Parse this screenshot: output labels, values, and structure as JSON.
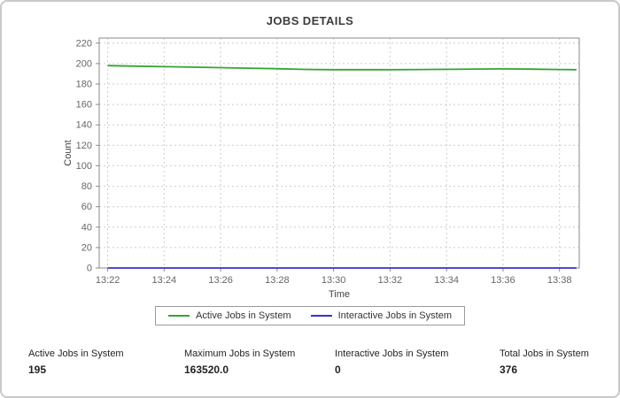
{
  "page_title": "JOBS DETAILS",
  "chart_data": {
    "type": "line",
    "title": "JOBS DETAILS",
    "xlabel": "Time",
    "ylabel": "Count",
    "ylim": [
      0,
      225
    ],
    "yticks": [
      0,
      20,
      40,
      60,
      80,
      100,
      120,
      140,
      160,
      180,
      200,
      220
    ],
    "xticks": [
      "13:22",
      "13:24",
      "13:26",
      "13:28",
      "13:30",
      "13:32",
      "13:34",
      "13:36",
      "13:38"
    ],
    "xtick_pos": [
      0,
      2,
      4,
      6,
      8,
      10,
      12,
      14,
      16
    ],
    "xmin": -0.3,
    "xmax": 16.7,
    "grid": true,
    "grid_color": "#cccccc",
    "axis_color": "#8a8a8a",
    "legend_position": "bottom",
    "series": [
      {
        "name": "Active Jobs in System",
        "color": "#33a532",
        "x": [
          0,
          1,
          2,
          3,
          4,
          5,
          6,
          7,
          8,
          9,
          10,
          11,
          12,
          13,
          14,
          15,
          16,
          16.6
        ],
        "values": [
          198,
          197.5,
          197,
          196.5,
          196,
          195.5,
          195,
          194.3,
          194,
          194,
          194,
          194.2,
          194.4,
          194.6,
          194.8,
          194.5,
          194.2,
          194
        ]
      },
      {
        "name": "Interactive Jobs in System",
        "color": "#3333cc",
        "x": [
          0,
          1,
          2,
          3,
          4,
          5,
          6,
          7,
          8,
          9,
          10,
          11,
          12,
          13,
          14,
          15,
          16,
          16.6
        ],
        "values": [
          0,
          0,
          0,
          0,
          0,
          0,
          0,
          0,
          0,
          0,
          0,
          0,
          0,
          0,
          0,
          0,
          0,
          0
        ]
      }
    ]
  },
  "stats": [
    {
      "label": "Active Jobs in System",
      "value": "195"
    },
    {
      "label": "Maximum Jobs in System",
      "value": "163520.0"
    },
    {
      "label": "Interactive Jobs in System",
      "value": "0"
    },
    {
      "label": "Total Jobs in System",
      "value": "376"
    }
  ]
}
